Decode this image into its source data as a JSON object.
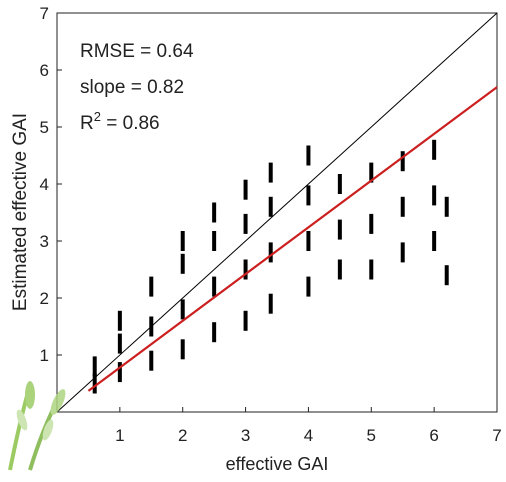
{
  "chart_data": {
    "type": "scatter",
    "xlabel": "effective GAI",
    "ylabel": "Estimated effective GAI",
    "annotations": [
      "RMSE = 0.64",
      "slope = 0.82"
    ],
    "r2": {
      "base": "R",
      "sup": "2",
      "rest": " = 0.86"
    },
    "xlim": [
      0,
      7
    ],
    "ylim": [
      0,
      7
    ],
    "xticks": [
      1,
      2,
      3,
      4,
      5,
      6,
      7
    ],
    "yticks": [
      1,
      2,
      3,
      4,
      5,
      6,
      7
    ],
    "series": [
      {
        "color": "#000000",
        "x": [
          0.6,
          0.6,
          1.0,
          1.0,
          1.0,
          1.5,
          1.5,
          1.5,
          2.0,
          2.0,
          2.0,
          2.0,
          2.5,
          2.5,
          2.5,
          2.5,
          3.0,
          3.0,
          3.0,
          3.0,
          3.4,
          3.4,
          3.4,
          3.4,
          4.0,
          4.0,
          4.0,
          4.0,
          4.5,
          4.5,
          4.5,
          5.0,
          5.0,
          5.0,
          5.5,
          5.5,
          5.5,
          6.0,
          6.0,
          6.0,
          6.2,
          6.2
        ],
        "y": [
          0.5,
          0.8,
          0.7,
          1.2,
          1.6,
          0.9,
          1.5,
          2.2,
          1.1,
          1.8,
          2.6,
          3.0,
          1.4,
          2.2,
          3.0,
          3.5,
          1.6,
          2.5,
          3.3,
          3.9,
          1.9,
          2.8,
          3.6,
          4.2,
          2.2,
          3.0,
          3.8,
          4.5,
          2.5,
          3.2,
          4.0,
          2.5,
          3.3,
          4.2,
          2.8,
          3.6,
          4.4,
          3.0,
          3.8,
          4.6,
          2.4,
          3.6
        ]
      }
    ],
    "one_to_one": {
      "x": [
        0,
        7
      ],
      "y": [
        0,
        7
      ],
      "color": "#000000"
    },
    "fit_line": {
      "x": [
        0.5,
        7
      ],
      "y": [
        0.37,
        5.7
      ],
      "color": "#cc1f1f"
    }
  }
}
